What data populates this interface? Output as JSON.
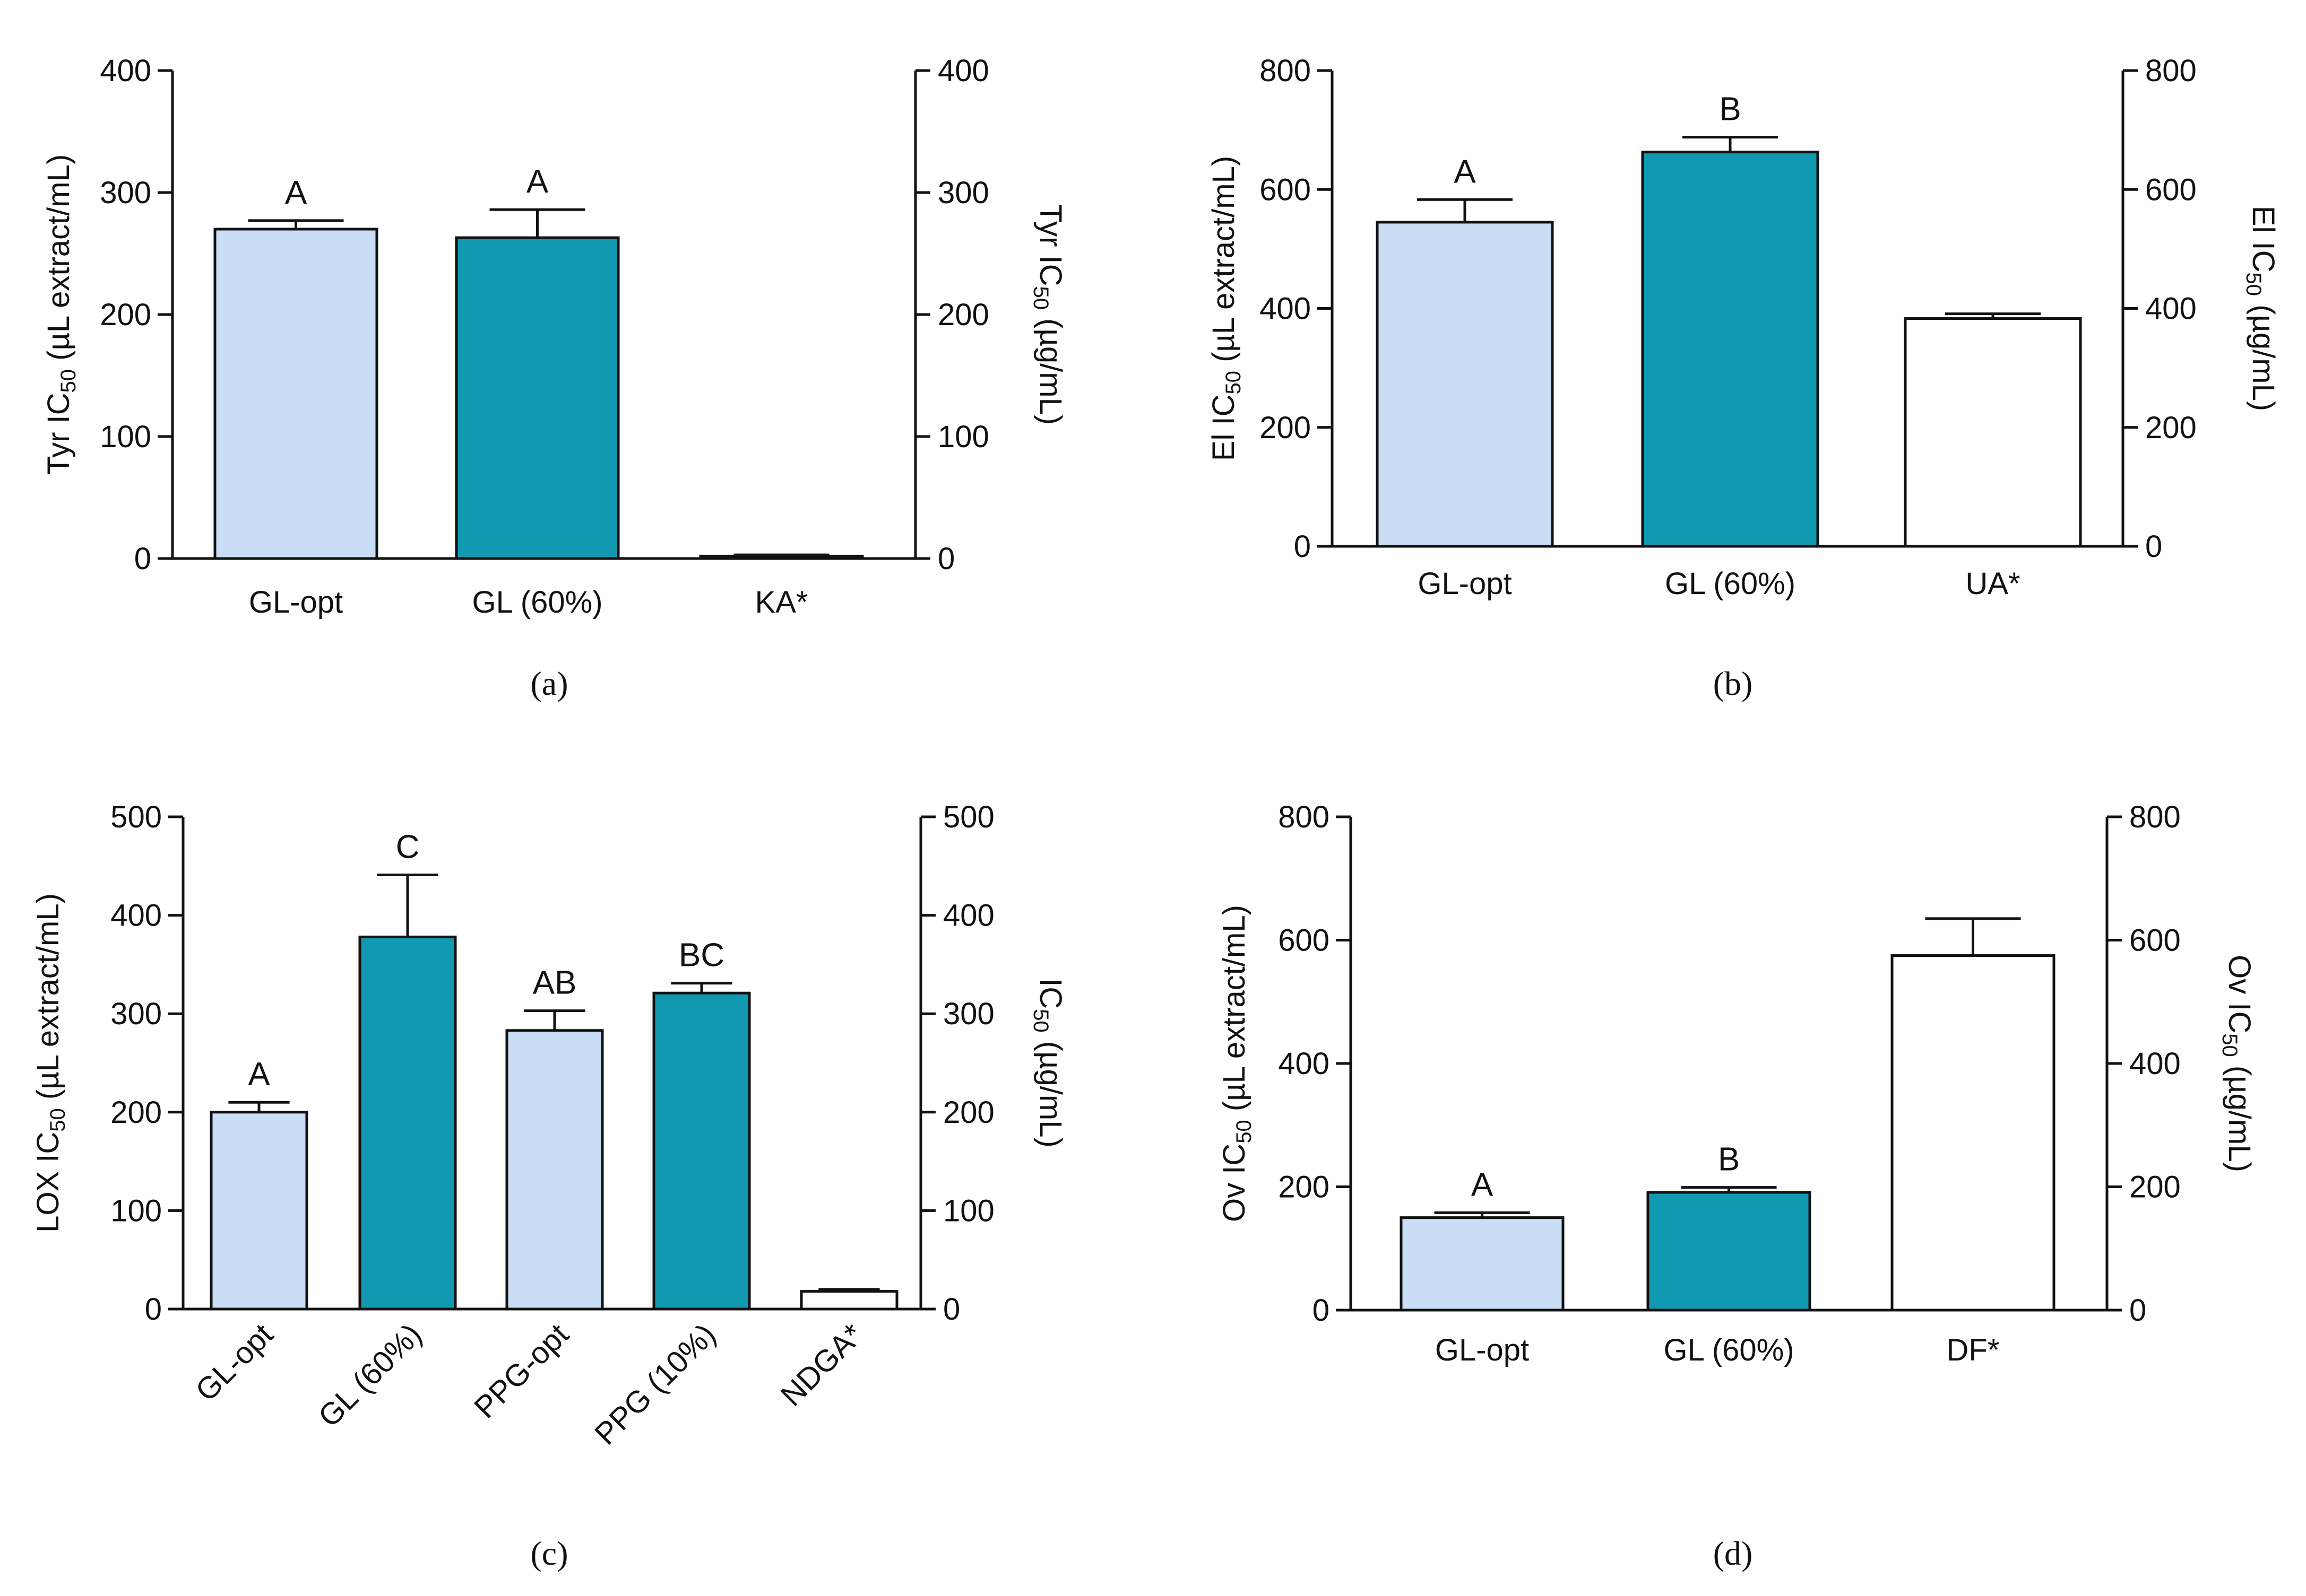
{
  "colors": {
    "light_blue": "#C9DDF5",
    "teal": "#1299B2",
    "white": "#FFFFFF",
    "axis": "#111111"
  },
  "chart_data": [
    {
      "type": "bar",
      "panel_label": "(a)",
      "categories": [
        "GL-opt",
        "GL (60%)",
        "KA*"
      ],
      "values": [
        270,
        263,
        2
      ],
      "errors": [
        7,
        23,
        1
      ],
      "significance": [
        "A",
        "A",
        ""
      ],
      "bar_colors": [
        "light_blue",
        "teal",
        "white"
      ],
      "ylim": [
        0,
        400
      ],
      "yticks": [
        0,
        100,
        200,
        300,
        400
      ],
      "y2ticks": [
        0,
        100,
        200,
        300,
        400
      ],
      "ylabel": {
        "pre": "Tyr IC",
        "sub": "50",
        "post": " (µL extract/mL)"
      },
      "y2label": {
        "pre": "Tyr IC",
        "sub": "50",
        "post": " (µg/mL)"
      },
      "rotate_xlabels": false
    },
    {
      "type": "bar",
      "panel_label": "(b)",
      "categories": [
        "GL-opt",
        "GL (60%)",
        "UA*"
      ],
      "values": [
        545,
        663,
        383
      ],
      "errors": [
        38,
        25,
        8
      ],
      "significance": [
        "A",
        "B",
        ""
      ],
      "bar_colors": [
        "light_blue",
        "teal",
        "white"
      ],
      "ylim": [
        0,
        800
      ],
      "yticks": [
        0,
        200,
        400,
        600,
        800
      ],
      "y2ticks": [
        0,
        200,
        400,
        600,
        800
      ],
      "ylabel": {
        "pre": "El IC",
        "sub": "50",
        "post": " (µL extract/mL)"
      },
      "y2label": {
        "pre": "El IC",
        "sub": "50",
        "post": " (µg/mL)"
      },
      "rotate_xlabels": false
    },
    {
      "type": "bar",
      "panel_label": "(c)",
      "categories": [
        "GL-opt",
        "GL (60%)",
        "PPG-opt",
        "PPG (10%)",
        "NDGA*"
      ],
      "values": [
        200,
        378,
        283,
        321,
        18
      ],
      "errors": [
        10,
        63,
        20,
        10,
        2
      ],
      "significance": [
        "A",
        "C",
        "AB",
        "BC",
        ""
      ],
      "bar_colors": [
        "light_blue",
        "teal",
        "light_blue",
        "teal",
        "white"
      ],
      "ylim": [
        0,
        500
      ],
      "yticks": [
        0,
        100,
        200,
        300,
        400,
        500
      ],
      "y2ticks": [
        0,
        100,
        200,
        300,
        400,
        500
      ],
      "ylabel": {
        "pre": "LOX IC",
        "sub": "50",
        "post": " (µL extract/mL)"
      },
      "y2label": {
        "pre": "IC",
        "sub": "50",
        "post": " (µg/mL)"
      },
      "rotate_xlabels": true
    },
    {
      "type": "bar",
      "panel_label": "(d)",
      "categories": [
        "GL-opt",
        "GL (60%)",
        "DF*"
      ],
      "values": [
        150,
        191,
        575
      ],
      "errors": [
        8,
        8,
        60
      ],
      "significance": [
        "A",
        "B",
        ""
      ],
      "bar_colors": [
        "light_blue",
        "teal",
        "white"
      ],
      "ylim": [
        0,
        800
      ],
      "yticks": [
        0,
        200,
        400,
        600,
        800
      ],
      "y2ticks": [
        0,
        200,
        400,
        600,
        800
      ],
      "ylabel": {
        "pre": "Ov IC",
        "sub": "50",
        "post": " (µL extract/mL)"
      },
      "y2label": {
        "pre": "Ov IC",
        "sub": "50",
        "post": " (µg/mL)"
      },
      "rotate_xlabels": false
    }
  ]
}
